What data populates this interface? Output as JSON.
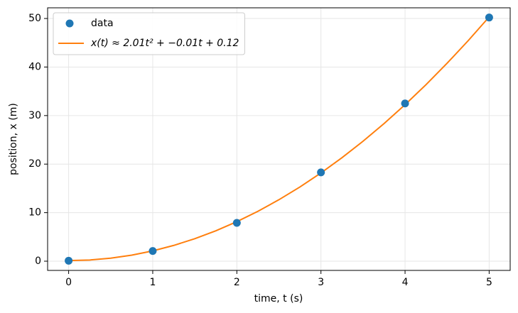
{
  "chart_data": {
    "type": "scatter",
    "xlabel": "time, t (s)",
    "ylabel": "position, x (m)",
    "xlim": [
      -0.25,
      5.25
    ],
    "ylim": [
      -1.9,
      52.2
    ],
    "xticks": [
      0,
      1,
      2,
      3,
      4,
      5
    ],
    "yticks": [
      0,
      10,
      20,
      30,
      40,
      50
    ],
    "grid": true,
    "legend": "upper left",
    "series": [
      {
        "name": "data",
        "style": "marker",
        "color": "#1f77b4",
        "x": [
          0,
          1,
          2,
          3,
          4,
          5
        ],
        "values": [
          0.1,
          2.1,
          7.9,
          18.3,
          32.5,
          50.2
        ]
      },
      {
        "name": "x(t) ≈ 2.01t² + −0.01t + 0.12",
        "style": "line",
        "color": "#ff7f0e",
        "x": [
          0,
          0.25,
          0.5,
          0.75,
          1,
          1.25,
          1.5,
          1.75,
          2,
          2.25,
          2.5,
          2.75,
          3,
          3.25,
          3.5,
          3.75,
          4,
          4.25,
          4.5,
          4.75,
          5
        ],
        "values": [
          0.12,
          0.24,
          0.62,
          1.24,
          2.12,
          3.25,
          4.63,
          6.26,
          8.14,
          10.27,
          12.66,
          15.29,
          18.18,
          21.32,
          24.71,
          28.35,
          32.24,
          36.38,
          40.78,
          45.42,
          50.32
        ]
      }
    ]
  }
}
